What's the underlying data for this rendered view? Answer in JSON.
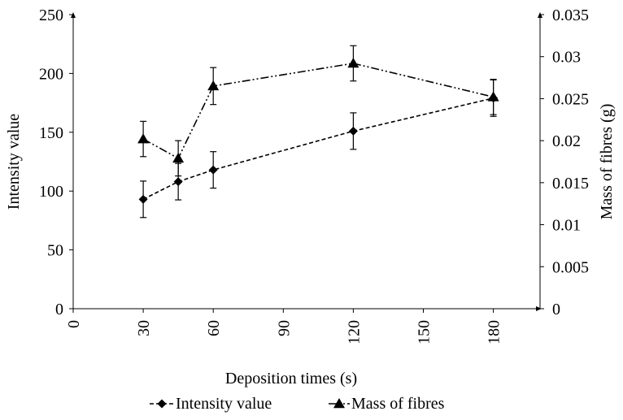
{
  "chart_data": {
    "type": "line",
    "xlabel": "Deposition times (s)",
    "ylabel": "Intensity value",
    "y2label": "Mass of fibres (g)",
    "xlim": [
      0,
      200
    ],
    "ylim": [
      0,
      250
    ],
    "y2lim": [
      0,
      0.035
    ],
    "x_ticks": [
      0,
      30,
      60,
      90,
      120,
      150,
      180
    ],
    "x_tick_labels": [
      "0",
      "30",
      "60",
      "90",
      "120",
      "150",
      "180"
    ],
    "y_ticks": [
      0,
      50,
      100,
      150,
      200,
      250
    ],
    "y_tick_labels": [
      "0",
      "50",
      "100",
      "150",
      "200",
      "250"
    ],
    "y2_ticks": [
      0,
      0.005,
      0.01,
      0.015,
      0.02,
      0.025,
      0.03,
      0.035
    ],
    "y2_tick_labels": [
      "0",
      "0.005",
      "0.01",
      "0.015",
      "0.02",
      "0.025",
      "0.03",
      "0.035"
    ],
    "grid": false,
    "legend_position": "bottom",
    "series": [
      {
        "name": "Intensity value",
        "axis": "left",
        "marker": "diamond",
        "line_style": "dashed",
        "x": [
          30,
          45,
          60,
          120,
          180
        ],
        "y": [
          93,
          108,
          118,
          151,
          179
        ],
        "error": [
          15.5,
          15.5,
          15.5,
          15.5,
          15.5
        ]
      },
      {
        "name": "Mass of fibres",
        "axis": "right",
        "marker": "triangle",
        "line_style": "dash-dot-dot",
        "x": [
          30,
          45,
          60,
          120,
          180
        ],
        "y": [
          0.0202,
          0.0179,
          0.0265,
          0.0292,
          0.0252
        ],
        "error": [
          0.0021,
          0.0021,
          0.0022,
          0.0021,
          0.0021
        ]
      }
    ]
  }
}
